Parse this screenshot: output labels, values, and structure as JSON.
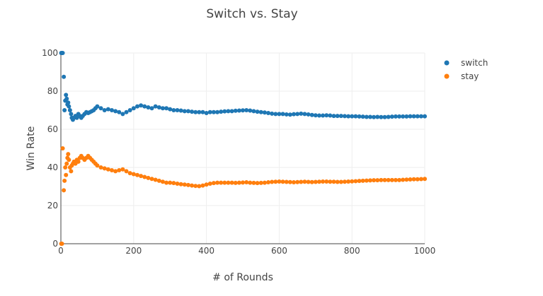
{
  "chart_data": {
    "type": "scatter",
    "title": "Switch vs. Stay",
    "xlabel": "# of Rounds",
    "ylabel": "Win Rate",
    "xlim": [
      0,
      1000
    ],
    "ylim": [
      0,
      100
    ],
    "x_ticks": [
      0,
      200,
      400,
      600,
      800,
      1000
    ],
    "y_ticks": [
      0,
      20,
      40,
      60,
      80,
      100
    ],
    "grid": true,
    "legend_position": "top-right",
    "x": [
      1,
      3,
      5,
      8,
      10,
      12,
      14,
      16,
      18,
      20,
      22,
      25,
      28,
      30,
      33,
      36,
      40,
      44,
      48,
      52,
      56,
      60,
      65,
      70,
      75,
      80,
      85,
      90,
      95,
      100,
      110,
      120,
      130,
      140,
      150,
      160,
      170,
      180,
      190,
      200,
      210,
      220,
      230,
      240,
      250,
      260,
      270,
      280,
      290,
      300,
      310,
      320,
      330,
      340,
      350,
      360,
      370,
      380,
      390,
      400,
      410,
      420,
      430,
      440,
      450,
      460,
      470,
      480,
      490,
      500,
      510,
      520,
      530,
      540,
      550,
      560,
      570,
      580,
      590,
      600,
      610,
      620,
      630,
      640,
      650,
      660,
      670,
      680,
      690,
      700,
      710,
      720,
      730,
      740,
      750,
      760,
      770,
      780,
      790,
      800,
      810,
      820,
      830,
      840,
      850,
      860,
      870,
      880,
      890,
      900,
      910,
      920,
      930,
      940,
      950,
      960,
      970,
      980,
      990,
      1000
    ],
    "series": [
      {
        "name": "switch",
        "color": "#1f77b4",
        "values": [
          100,
          100,
          100,
          87.5,
          70,
          75,
          78,
          76,
          73,
          74,
          72,
          70,
          68,
          66,
          65,
          66,
          67,
          66,
          68,
          67,
          66,
          67,
          68,
          69,
          68.5,
          69,
          69.5,
          70,
          71,
          72,
          71,
          70,
          70.5,
          70,
          69.5,
          69,
          68,
          69,
          70,
          71,
          72,
          72.5,
          72,
          71.5,
          71,
          72,
          71.5,
          71,
          71,
          70.5,
          70,
          70,
          69.8,
          69.5,
          69.5,
          69.2,
          69,
          69,
          69,
          68.5,
          69,
          69,
          69,
          69.2,
          69.4,
          69.5,
          69.5,
          69.7,
          69.8,
          69.9,
          70,
          69.8,
          69.5,
          69.2,
          69,
          68.8,
          68.5,
          68.2,
          68,
          68,
          68,
          67.8,
          67.7,
          67.9,
          68,
          68.2,
          68,
          67.8,
          67.5,
          67.3,
          67.2,
          67.2,
          67.3,
          67.2,
          67,
          67,
          67,
          66.9,
          66.8,
          66.8,
          66.8,
          66.7,
          66.6,
          66.5,
          66.5,
          66.4,
          66.5,
          66.4,
          66.4,
          66.5,
          66.6,
          66.7,
          66.7,
          66.7,
          66.7,
          66.8,
          66.8,
          66.8,
          66.8,
          66.8
        ]
      },
      {
        "name": "stay",
        "color": "#ff7f0e",
        "values": [
          0,
          0,
          50,
          28,
          33,
          40,
          36,
          42,
          45,
          47,
          44,
          40,
          38,
          41,
          42,
          43,
          42,
          44,
          43,
          45,
          46,
          45,
          44,
          45,
          46,
          45,
          44,
          43,
          42,
          41,
          40,
          39.5,
          39,
          38.5,
          38,
          38.5,
          39,
          38,
          37,
          36.5,
          36,
          35.5,
          35,
          34.5,
          34,
          33.5,
          33,
          32.5,
          32,
          32,
          31.8,
          31.5,
          31.2,
          31,
          30.8,
          30.5,
          30.3,
          30.2,
          30.5,
          31,
          31.5,
          31.8,
          32,
          32,
          32,
          32,
          32,
          31.9,
          32,
          32.1,
          32.2,
          32,
          31.9,
          31.8,
          31.9,
          32,
          32.2,
          32.4,
          32.5,
          32.6,
          32.5,
          32.4,
          32.3,
          32.2,
          32.3,
          32.4,
          32.5,
          32.4,
          32.3,
          32.4,
          32.5,
          32.6,
          32.6,
          32.5,
          32.5,
          32.4,
          32.4,
          32.5,
          32.6,
          32.7,
          32.8,
          32.9,
          33,
          33.1,
          33.2,
          33.3,
          33.3,
          33.4,
          33.4,
          33.4,
          33.4,
          33.4,
          33.4,
          33.5,
          33.6,
          33.7,
          33.8,
          33.8,
          33.9,
          34
        ]
      }
    ]
  }
}
